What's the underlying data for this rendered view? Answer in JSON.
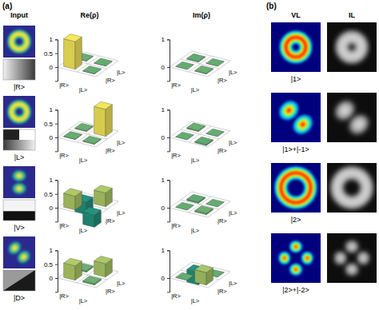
{
  "chart_data": [
    {
      "type": "bar3d",
      "categories": [
        "|R>",
        "|L>"
      ],
      "values": [
        [
          1.0,
          0.02
        ],
        [
          0.02,
          0.01
        ]
      ],
      "ylim": [
        -0.5,
        1
      ],
      "yticks": [
        0,
        0.5,
        1
      ]
    },
    {
      "type": "bar3d",
      "categories": [
        "|R>",
        "|L>"
      ],
      "values": [
        [
          0.0,
          0.03
        ],
        [
          -0.03,
          0.0
        ]
      ],
      "ylim": [
        -0.5,
        1
      ],
      "yticks": [
        0,
        1
      ]
    },
    {
      "type": "bar3d",
      "categories": [
        "|R>",
        "|L>"
      ],
      "values": [
        [
          0.02,
          0.03
        ],
        [
          0.03,
          0.98
        ]
      ],
      "ylim": [
        -0.5,
        1
      ],
      "yticks": [
        0,
        0.5,
        1
      ]
    },
    {
      "type": "bar3d",
      "categories": [
        "|R>",
        "|L>"
      ],
      "values": [
        [
          0.0,
          -0.04
        ],
        [
          0.04,
          0.0
        ]
      ],
      "ylim": [
        -0.5,
        1
      ],
      "yticks": [
        0,
        1
      ]
    },
    {
      "type": "bar3d",
      "categories": [
        "|R>",
        "|L>"
      ],
      "values": [
        [
          0.5,
          -0.45
        ],
        [
          -0.45,
          0.5
        ]
      ],
      "ylim": [
        -0.5,
        1
      ],
      "yticks": [
        0,
        0.5,
        1
      ]
    },
    {
      "type": "bar3d",
      "categories": [
        "|R>",
        "|L>"
      ],
      "values": [
        [
          0.0,
          0.05
        ],
        [
          -0.05,
          0.0
        ]
      ],
      "ylim": [
        -0.5,
        1
      ],
      "yticks": [
        0,
        1
      ]
    },
    {
      "type": "bar3d",
      "categories": [
        "|R>",
        "|L>"
      ],
      "values": [
        [
          0.52,
          0.05
        ],
        [
          0.05,
          0.48
        ]
      ],
      "ylim": [
        -0.5,
        1
      ],
      "yticks": [
        0,
        0.5,
        1
      ]
    },
    {
      "type": "bar3d",
      "categories": [
        "|R>",
        "|L>"
      ],
      "values": [
        [
          0.0,
          0.45
        ],
        [
          -0.45,
          0.0
        ]
      ],
      "ylim": [
        -0.5,
        1
      ],
      "yticks": [
        0,
        1
      ]
    }
  ],
  "panels": {
    "a_label": "(a)",
    "input_header": "Input",
    "re_header": "Re(ρ)",
    "im_header": "Im(ρ)",
    "input_labels": [
      "|R>",
      "|L>",
      "|V>",
      "|D>"
    ],
    "b_label": "(b)",
    "vl_header": "VL",
    "il_header": "IL",
    "vl_labels": [
      "|1>",
      "|1>+|-1>",
      "|2>",
      "|2>+|-2>"
    ]
  }
}
